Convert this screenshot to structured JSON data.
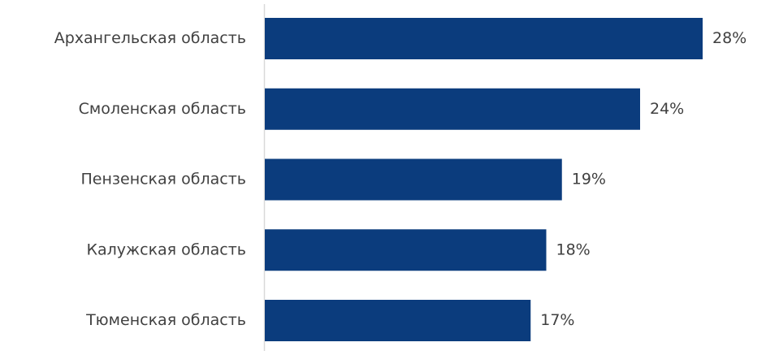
{
  "chart_data": {
    "type": "bar",
    "orientation": "horizontal",
    "categories": [
      "Архангельская область",
      "Смоленская область",
      "Пензенская область",
      "Калужская область",
      "Тюменская область"
    ],
    "values": [
      28,
      24,
      19,
      18,
      17
    ],
    "value_labels": [
      "28%",
      "24%",
      "19%",
      "18%",
      "17%"
    ],
    "unit": "%",
    "bar_color": "#0b3c7d",
    "title": "",
    "xlabel": "",
    "ylabel": "",
    "xlim": [
      0,
      28
    ],
    "grid": false,
    "legend": "none"
  }
}
